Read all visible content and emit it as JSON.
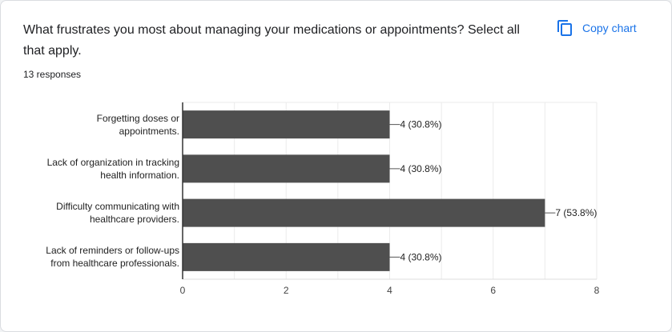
{
  "question": {
    "title": "What frustrates you most about managing your medications or appointments? Select all that apply.",
    "responses": "13 responses"
  },
  "toolbar": {
    "copy_label": "Copy chart",
    "copy_icon": "copy-icon"
  },
  "colors": {
    "bar": "#4f4f4f",
    "accent": "#1a73e8",
    "grid": "#ebebeb"
  },
  "chart_data": {
    "type": "bar",
    "orientation": "horizontal",
    "categories": [
      [
        "Forgetting doses or",
        "appointments."
      ],
      [
        "Lack of organization in tracking",
        "health information."
      ],
      [
        "Difficulty communicating with",
        "healthcare providers."
      ],
      [
        "Lack of reminders or follow-ups",
        "from healthcare professionals."
      ]
    ],
    "values": [
      4,
      4,
      7,
      4
    ],
    "data_labels": [
      "4 (30.8%)",
      "4 (30.8%)",
      "7 (53.8%)",
      "4 (30.8%)"
    ],
    "xlim": [
      0,
      8
    ],
    "xticks": [
      0,
      2,
      4,
      6,
      8
    ],
    "grid": true
  }
}
